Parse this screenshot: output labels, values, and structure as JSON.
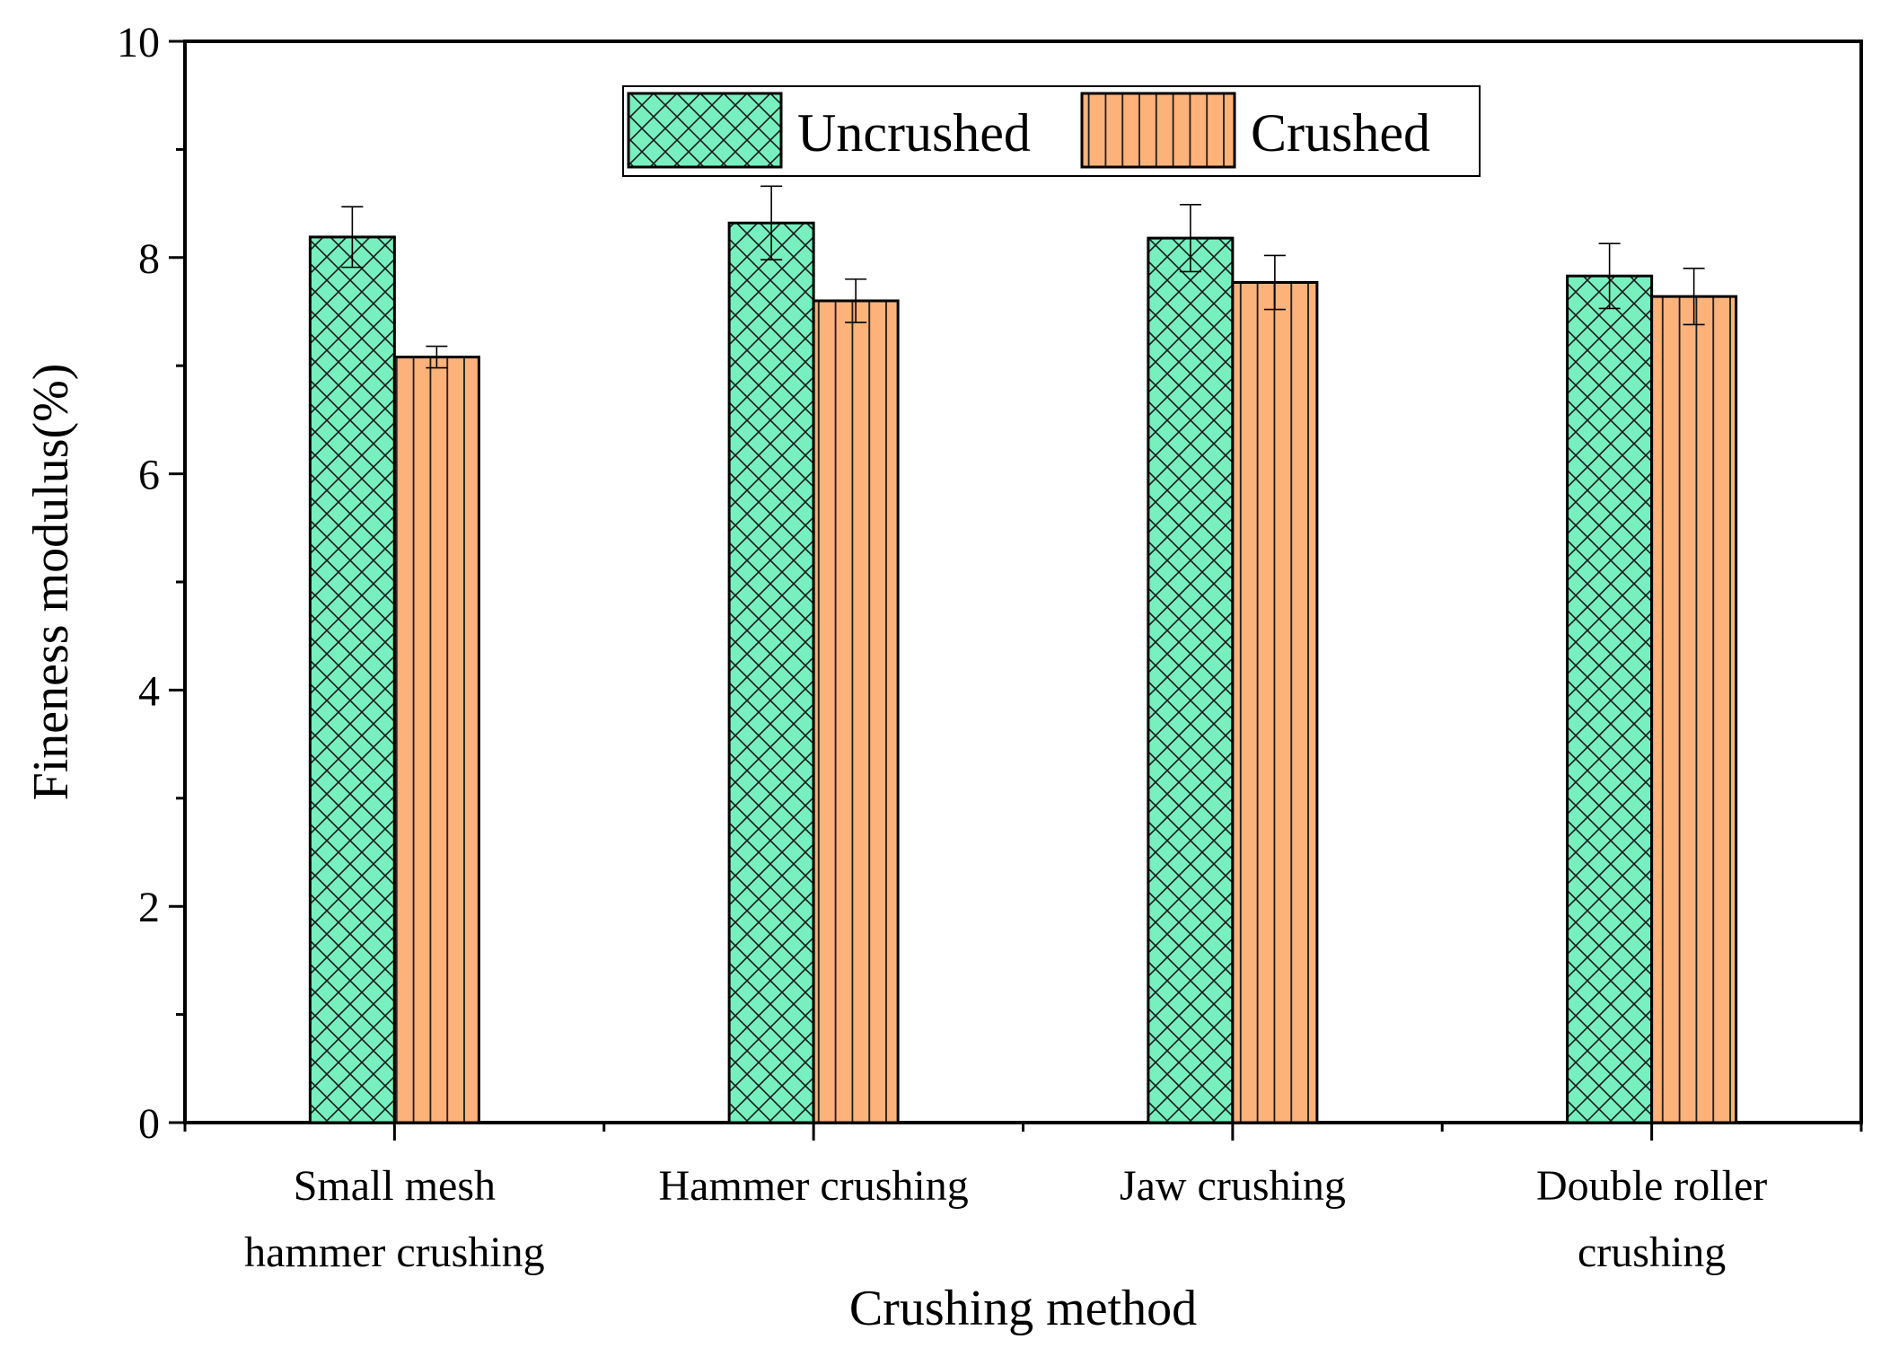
{
  "chart_data": {
    "type": "bar",
    "title": "",
    "xlabel": "Crushing method",
    "ylabel": "Fineness modulus(%)",
    "ylim": [
      0,
      10
    ],
    "yticks": [
      0,
      2,
      4,
      6,
      8,
      10
    ],
    "categories": [
      [
        "Small mesh",
        "hammer crushing"
      ],
      [
        "Hammer crushing"
      ],
      [
        "Jaw crushing"
      ],
      [
        "Double roller",
        "crushing"
      ]
    ],
    "series": [
      {
        "name": "Uncrushed",
        "color": "#77EFBF",
        "pattern": "crosshatch",
        "values": [
          8.19,
          8.32,
          8.18,
          7.83
        ],
        "errors": [
          0.28,
          0.34,
          0.31,
          0.3
        ]
      },
      {
        "name": "Crushed",
        "color": "#FDB27A",
        "pattern": "vertical-lines",
        "values": [
          7.08,
          7.6,
          7.77,
          7.64
        ],
        "errors": [
          0.1,
          0.2,
          0.25,
          0.26
        ]
      }
    ],
    "legend": {
      "position": "top-center",
      "entries": [
        "Uncrushed",
        "Crushed"
      ]
    },
    "grid": false
  }
}
